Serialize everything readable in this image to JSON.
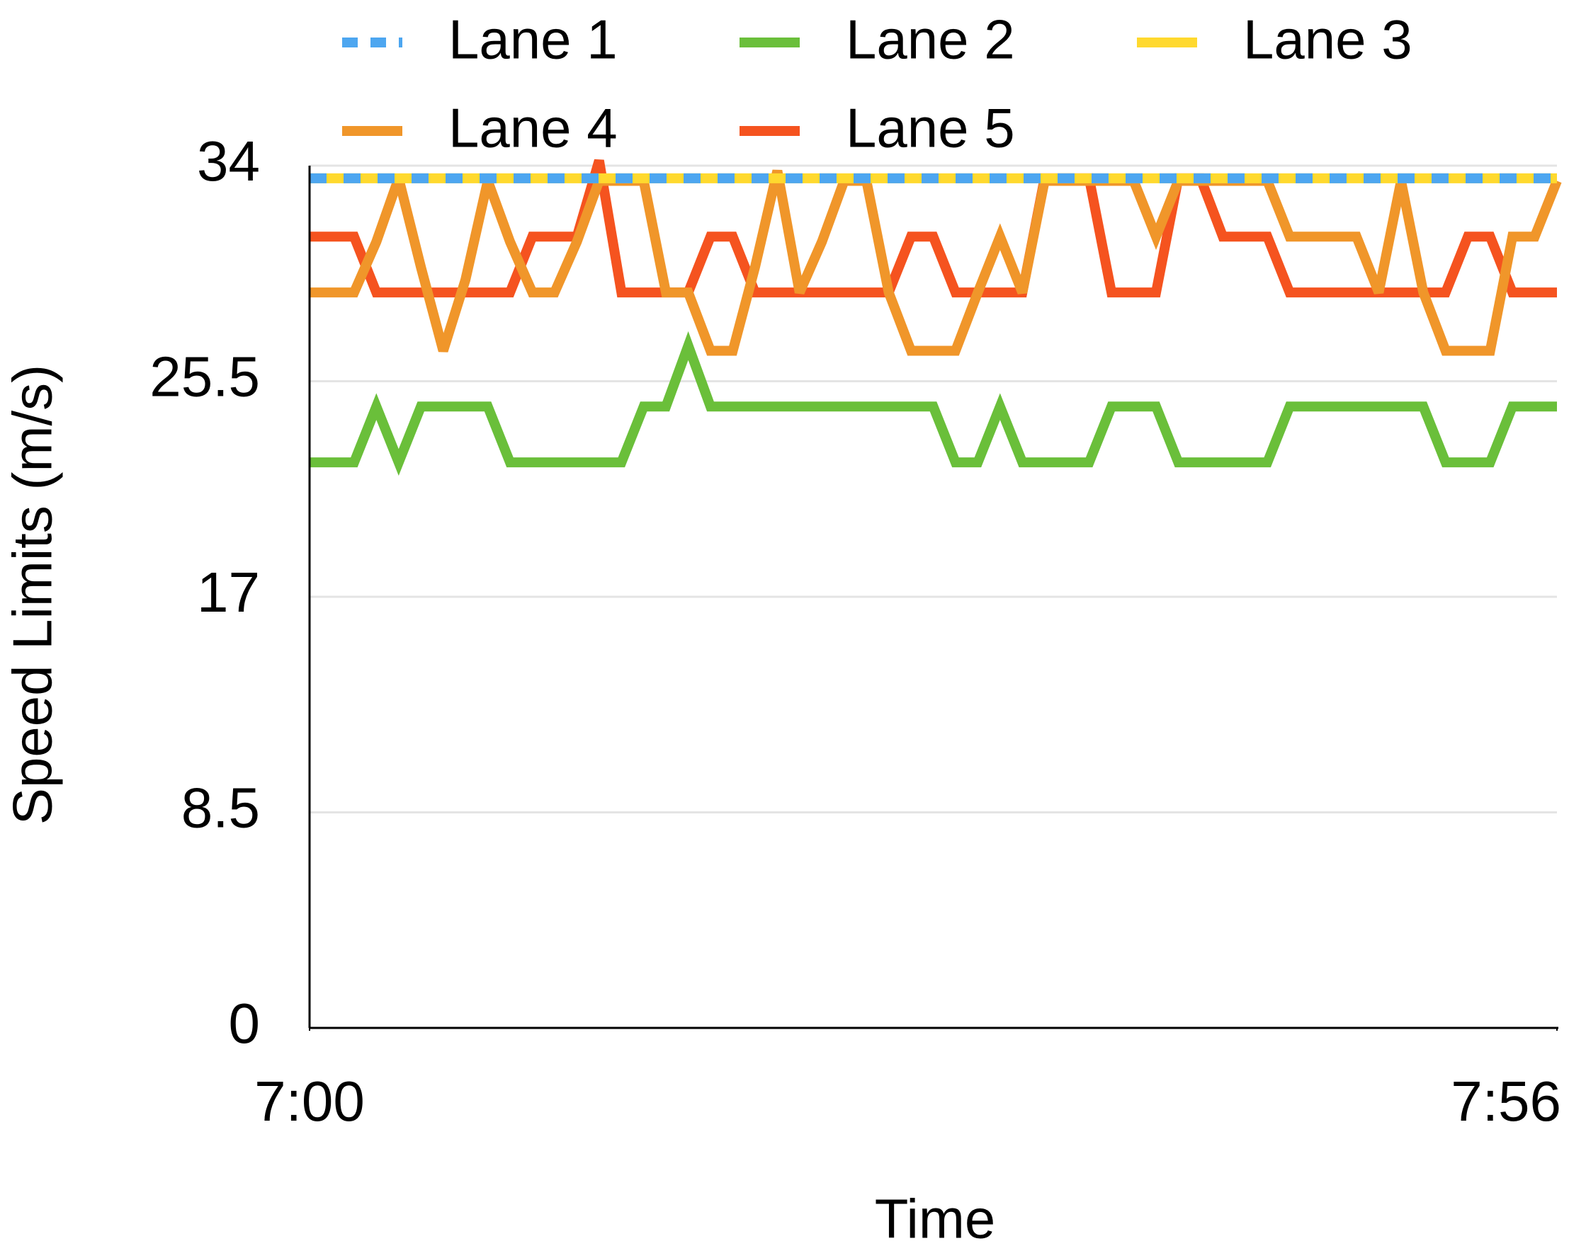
{
  "chart_data": {
    "type": "line",
    "x_label": "Time",
    "y_label": "Speed Limits (m/s)",
    "x": [
      0,
      1,
      2,
      3,
      4,
      5,
      6,
      7,
      8,
      9,
      10,
      11,
      12,
      13,
      14,
      15,
      16,
      17,
      18,
      19,
      20,
      21,
      22,
      23,
      24,
      25,
      26,
      27,
      28,
      29,
      30,
      31,
      32,
      33,
      34,
      35,
      36,
      37,
      38,
      39,
      40,
      41,
      42,
      43,
      44,
      45,
      46,
      47,
      48,
      49,
      50,
      51,
      52,
      53,
      54,
      55,
      56
    ],
    "xlim": [
      0,
      56
    ],
    "xticks": [
      {
        "value": 0,
        "label": "7:00"
      },
      {
        "value": 56,
        "label": "7:56"
      }
    ],
    "ylim": [
      0,
      34
    ],
    "yticks": [
      0,
      8.5,
      17,
      25.5,
      34
    ],
    "grid": true,
    "series": [
      {
        "name": "Lane 1",
        "color": "#4da6f0",
        "dashed": true,
        "values": [
          33.5,
          33.5,
          33.5,
          33.5,
          33.5,
          33.5,
          33.5,
          33.5,
          33.5,
          33.5,
          33.5,
          33.5,
          33.5,
          33.5,
          33.5,
          33.5,
          33.5,
          33.5,
          33.5,
          33.5,
          33.5,
          33.5,
          33.5,
          33.5,
          33.5,
          33.5,
          33.5,
          33.5,
          33.5,
          33.5,
          33.5,
          33.5,
          33.5,
          33.5,
          33.5,
          33.5,
          33.5,
          33.5,
          33.5,
          33.5,
          33.5,
          33.5,
          33.5,
          33.5,
          33.5,
          33.5,
          33.5,
          33.5,
          33.5,
          33.5,
          33.5,
          33.5,
          33.5,
          33.5,
          33.5,
          33.5,
          33.5
        ]
      },
      {
        "name": "Lane 2",
        "color": "#6abf3a",
        "values": [
          22.3,
          22.3,
          22.3,
          24.5,
          22.3,
          24.5,
          24.5,
          24.5,
          24.5,
          22.3,
          22.3,
          22.3,
          22.3,
          22.3,
          22.3,
          24.5,
          24.5,
          26.9,
          24.5,
          24.5,
          24.5,
          24.5,
          24.5,
          24.5,
          24.5,
          24.5,
          24.5,
          24.5,
          24.5,
          22.3,
          22.3,
          24.5,
          22.3,
          22.3,
          22.3,
          22.3,
          24.5,
          24.5,
          24.5,
          22.3,
          22.3,
          22.3,
          22.3,
          22.3,
          24.5,
          24.5,
          24.5,
          24.5,
          24.5,
          24.5,
          24.5,
          22.3,
          22.3,
          22.3,
          24.5,
          24.5,
          24.5
        ]
      },
      {
        "name": "Lane 3",
        "color": "#ffd92e",
        "values": [
          33.5,
          33.5,
          33.5,
          33.5,
          33.5,
          33.5,
          33.5,
          33.5,
          33.5,
          33.5,
          33.5,
          33.5,
          33.5,
          33.5,
          33.5,
          33.5,
          33.5,
          33.5,
          33.5,
          33.5,
          33.5,
          33.5,
          33.5,
          33.5,
          33.5,
          33.5,
          33.5,
          33.5,
          33.5,
          33.5,
          33.5,
          33.5,
          33.5,
          33.5,
          33.5,
          33.5,
          33.5,
          33.5,
          33.5,
          33.5,
          33.5,
          33.5,
          33.5,
          33.5,
          33.5,
          33.5,
          33.5,
          33.5,
          33.5,
          33.5,
          33.5,
          33.5,
          33.5,
          33.5,
          33.5,
          33.5,
          33.5
        ]
      },
      {
        "name": "Lane 4",
        "color": "#f0962a",
        "values": [
          29,
          29,
          29,
          31,
          33.5,
          30,
          26.7,
          29.5,
          33.4,
          31,
          29,
          29,
          31,
          33.4,
          33.4,
          33.4,
          29,
          29,
          26.7,
          26.7,
          30,
          33.8,
          29,
          31,
          33.4,
          33.4,
          29,
          26.7,
          26.7,
          26.7,
          29,
          31.2,
          29,
          33.4,
          33.4,
          33.4,
          33.4,
          33.4,
          31.2,
          33.4,
          33.4,
          33.4,
          33.4,
          33.4,
          31.2,
          31.2,
          31.2,
          31.2,
          29,
          33.4,
          29,
          26.7,
          26.7,
          26.7,
          31.2,
          31.2,
          33.4
        ]
      },
      {
        "name": "Lane 5",
        "color": "#f5531f",
        "values": [
          31.2,
          31.2,
          31.2,
          29,
          29,
          29,
          29,
          29,
          29,
          29,
          31.2,
          31.2,
          31.2,
          34.2,
          29,
          29,
          29,
          29,
          31.2,
          31.2,
          29,
          29,
          29,
          29,
          29,
          29,
          29,
          31.2,
          31.2,
          29,
          29,
          29,
          29,
          33.5,
          33.5,
          33.5,
          29,
          29,
          29,
          33.5,
          33.5,
          31.2,
          31.2,
          31.2,
          29,
          29,
          29,
          29,
          29,
          29,
          29,
          29,
          31.2,
          31.2,
          29,
          29,
          29
        ]
      }
    ]
  }
}
